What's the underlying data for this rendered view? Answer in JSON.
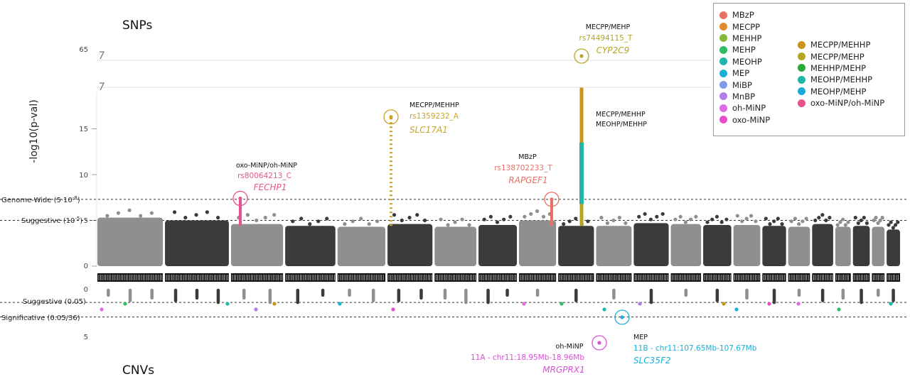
{
  "chart_data": {
    "type": "scatter",
    "panels": {
      "snps": {
        "title": "SNPs",
        "ylabel": "-log10(p-val)",
        "yticks": [
          "0",
          "5",
          "10",
          "15"
        ],
        "ybreak_tick": "65",
        "thresholds": [
          {
            "label": "Genome-Wide (5·10",
            "sup": "-8",
            "end": ")",
            "value": 7.3
          },
          {
            "label": "Suggestive (10",
            "sup": "-5",
            "end": ")",
            "value": 5.0
          }
        ],
        "hits": [
          {
            "trait": "oxo-MiNP/oh-MiNP",
            "snp": "rs80064213_C",
            "gene": "FECHP1",
            "color": "#e8538f",
            "value": 7.4
          },
          {
            "trait": "MECPP/MEHHP",
            "snp": "rs1359232_A",
            "gene": "SLC17A1",
            "color": "#c9a227",
            "value": 16.3
          },
          {
            "trait": "MBzP",
            "snp": "rs138702233_T",
            "gene": "RAPGEF1",
            "color": "#ea7066",
            "value": 7.3
          },
          {
            "trait": "MECPP/MEHP",
            "snp": "rs74494115_T",
            "gene": "CYP2C9",
            "color": "#b5a623",
            "value": 65
          }
        ],
        "side_labels": [
          "MECPP/MEHHP",
          "MEOHP/MEHHP"
        ]
      },
      "cnvs": {
        "title": "CNVs",
        "yticks": [
          "0",
          "5"
        ],
        "thresholds": [
          {
            "label": "Suggestive (0.05)",
            "value": 0.05
          },
          {
            "label": "Significative (0.05/36)",
            "value": 0.0014
          }
        ],
        "hits": [
          {
            "trait": "oh-MiNP",
            "region": "11A - chr11:18.95Mb-18.96Mb",
            "gene": "MRGPRX1",
            "color": "#d94fd6"
          },
          {
            "trait": "MEP",
            "region": "11B - chr11:107.65Mb-107.67Mb",
            "gene": "SLC35F2",
            "color": "#1ab0d6"
          }
        ]
      }
    },
    "legend": {
      "col1": [
        {
          "name": "MBzP",
          "color": "#ea7066"
        },
        {
          "name": "MECPP",
          "color": "#e08a2c"
        },
        {
          "name": "MEHHP",
          "color": "#86b83a"
        },
        {
          "name": "MEHP",
          "color": "#2fbc63"
        },
        {
          "name": "MEOHP",
          "color": "#1fb8a8"
        },
        {
          "name": "MEP",
          "color": "#1ab0d6"
        },
        {
          "name": "MiBP",
          "color": "#7e9ae8"
        },
        {
          "name": "MnBP",
          "color": "#b07ee8"
        },
        {
          "name": "oh-MiNP",
          "color": "#e06ae6"
        },
        {
          "name": "oxo-MiNP",
          "color": "#e64fc8"
        }
      ],
      "col2": [
        {
          "name": "MECPP/MEHHP",
          "color": "#c9931c"
        },
        {
          "name": "MECPP/MEHP",
          "color": "#b5a623"
        },
        {
          "name": "MEHHP/MEHP",
          "color": "#2aa83a"
        },
        {
          "name": "MEOHP/MEHHP",
          "color": "#22b5a5"
        },
        {
          "name": "MEOHP/MEHP",
          "color": "#1aa8d6"
        },
        {
          "name": "oxo-MiNP/oh-MiNP",
          "color": "#e8538f"
        }
      ]
    }
  }
}
